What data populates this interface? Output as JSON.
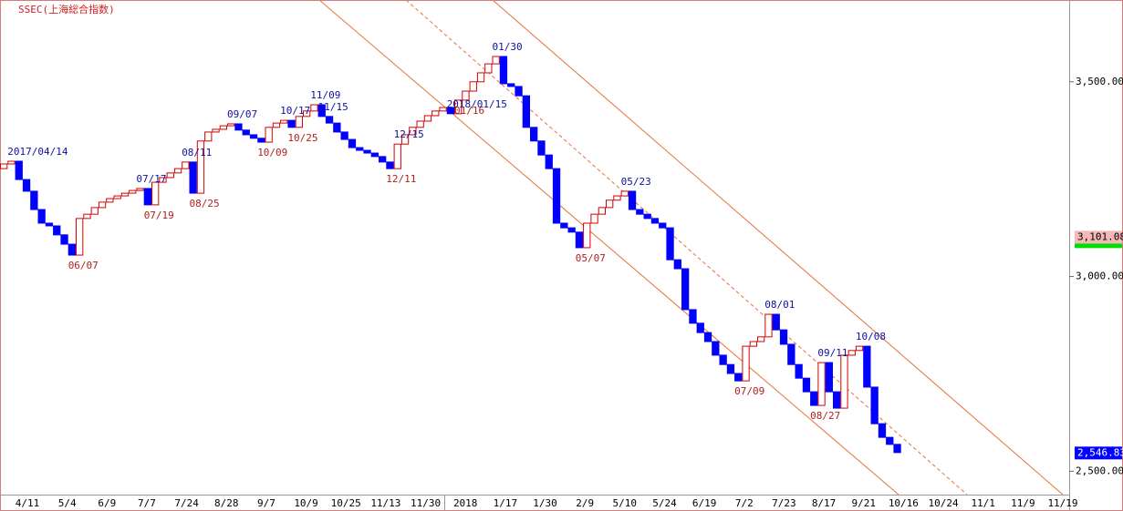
{
  "chart_data": {
    "type": "line-break",
    "title": "SSEC(上海総合指数)",
    "values": [
      3277,
      3289,
      3296,
      3249,
      3219,
      3172,
      3137,
      3130,
      3107,
      3083,
      3055,
      3149,
      3160,
      3177,
      3191,
      3200,
      3207,
      3214,
      3221,
      3226,
      3184,
      3242,
      3254,
      3266,
      3277,
      3294,
      3214,
      3348,
      3371,
      3378,
      3387,
      3392,
      3376,
      3364,
      3355,
      3345,
      3383,
      3394,
      3401,
      3383,
      3411,
      3425,
      3441,
      3411,
      3394,
      3371,
      3352,
      3331,
      3324,
      3317,
      3308,
      3294,
      3277,
      3340,
      3364,
      3383,
      3399,
      3413,
      3425,
      3434,
      3418,
      3453,
      3476,
      3500,
      3523,
      3546,
      3565,
      3495,
      3488,
      3464,
      3383,
      3348,
      3312,
      3277,
      3137,
      3125,
      3114,
      3074,
      3137,
      3160,
      3177,
      3196,
      3207,
      3219,
      3172,
      3160,
      3149,
      3137,
      3125,
      3043,
      3020,
      2915,
      2880,
      2856,
      2833,
      2798,
      2774,
      2751,
      2732,
      2821,
      2833,
      2845,
      2903,
      2863,
      2826,
      2774,
      2739,
      2704,
      2669,
      2779,
      2704,
      2662,
      2798,
      2810,
      2821,
      2716,
      2622,
      2587,
      2569,
      2548
    ],
    "high_labels": [
      null,
      null,
      "2017/04/14",
      null,
      null,
      null,
      null,
      null,
      null,
      null,
      null,
      null,
      null,
      null,
      null,
      null,
      null,
      null,
      null,
      "07/17",
      null,
      null,
      null,
      null,
      null,
      "08/11",
      null,
      null,
      null,
      null,
      null,
      "09/07",
      null,
      null,
      null,
      null,
      null,
      null,
      "10/17",
      null,
      null,
      null,
      "11/09",
      "11/15",
      null,
      null,
      null,
      null,
      null,
      null,
      null,
      null,
      null,
      "12/15",
      null,
      null,
      null,
      null,
      null,
      null,
      "2018/01/15",
      null,
      null,
      null,
      null,
      null,
      "01/30",
      null,
      null,
      null,
      null,
      null,
      null,
      null,
      null,
      null,
      null,
      null,
      null,
      null,
      null,
      null,
      null,
      "05/23",
      null,
      null,
      null,
      null,
      null,
      null,
      null,
      null,
      null,
      null,
      null,
      null,
      null,
      null,
      null,
      null,
      null,
      null,
      "08/01",
      null,
      null,
      null,
      null,
      null,
      null,
      "09/11",
      null,
      null,
      null,
      null,
      "10/08",
      null,
      null,
      null,
      null,
      null
    ],
    "low_labels": [
      null,
      null,
      null,
      null,
      null,
      null,
      null,
      null,
      null,
      null,
      "06/07",
      null,
      null,
      null,
      null,
      null,
      null,
      null,
      null,
      null,
      "07/19",
      null,
      null,
      null,
      null,
      null,
      "08/25",
      null,
      null,
      null,
      null,
      null,
      null,
      null,
      null,
      "10/09",
      null,
      null,
      null,
      "10/25",
      null,
      null,
      null,
      null,
      null,
      null,
      null,
      null,
      null,
      null,
      null,
      null,
      "12/11",
      null,
      null,
      null,
      null,
      null,
      null,
      null,
      null,
      "01/16",
      null,
      null,
      null,
      null,
      null,
      null,
      null,
      null,
      null,
      null,
      null,
      null,
      null,
      null,
      null,
      "05/07",
      null,
      null,
      null,
      null,
      null,
      null,
      null,
      null,
      null,
      null,
      null,
      null,
      null,
      null,
      null,
      null,
      null,
      null,
      null,
      null,
      "07/09",
      null,
      null,
      null,
      null,
      null,
      null,
      null,
      null,
      null,
      "08/27",
      null,
      null,
      null,
      null,
      null,
      null,
      null,
      null,
      null,
      null,
      null
    ],
    "up_color": "#d40000",
    "down_color": "#0000ff",
    "high_label_color": "#1010a0",
    "low_label_color": "#b02020",
    "date_labels": [
      "4/11",
      "5/4",
      "6/9",
      "7/7",
      "7/24",
      "8/28",
      "9/7",
      "10/9",
      "10/25",
      "11/13",
      "11/30",
      "2018",
      "1/17",
      "1/30",
      "2/9",
      "5/10",
      "5/24",
      "6/19",
      "7/2",
      "7/23",
      "8/17",
      "9/21",
      "10/16",
      "10/24",
      "11/1",
      "11/9",
      "11/19"
    ],
    "ylim": [
      2440,
      3710
    ],
    "yticks": [
      {
        "value": 2500,
        "label": "2,500.00"
      },
      {
        "value": 3000,
        "label": "3,000.00"
      },
      {
        "value": 3500,
        "label": "3,500.00"
      }
    ],
    "price_markers": [
      {
        "value": 3101.08,
        "label": "3,101.08",
        "color": "#f4b8b8"
      },
      {
        "value": 2546.83,
        "label": "2,546.83",
        "color": "#0000ff"
      }
    ]
  }
}
